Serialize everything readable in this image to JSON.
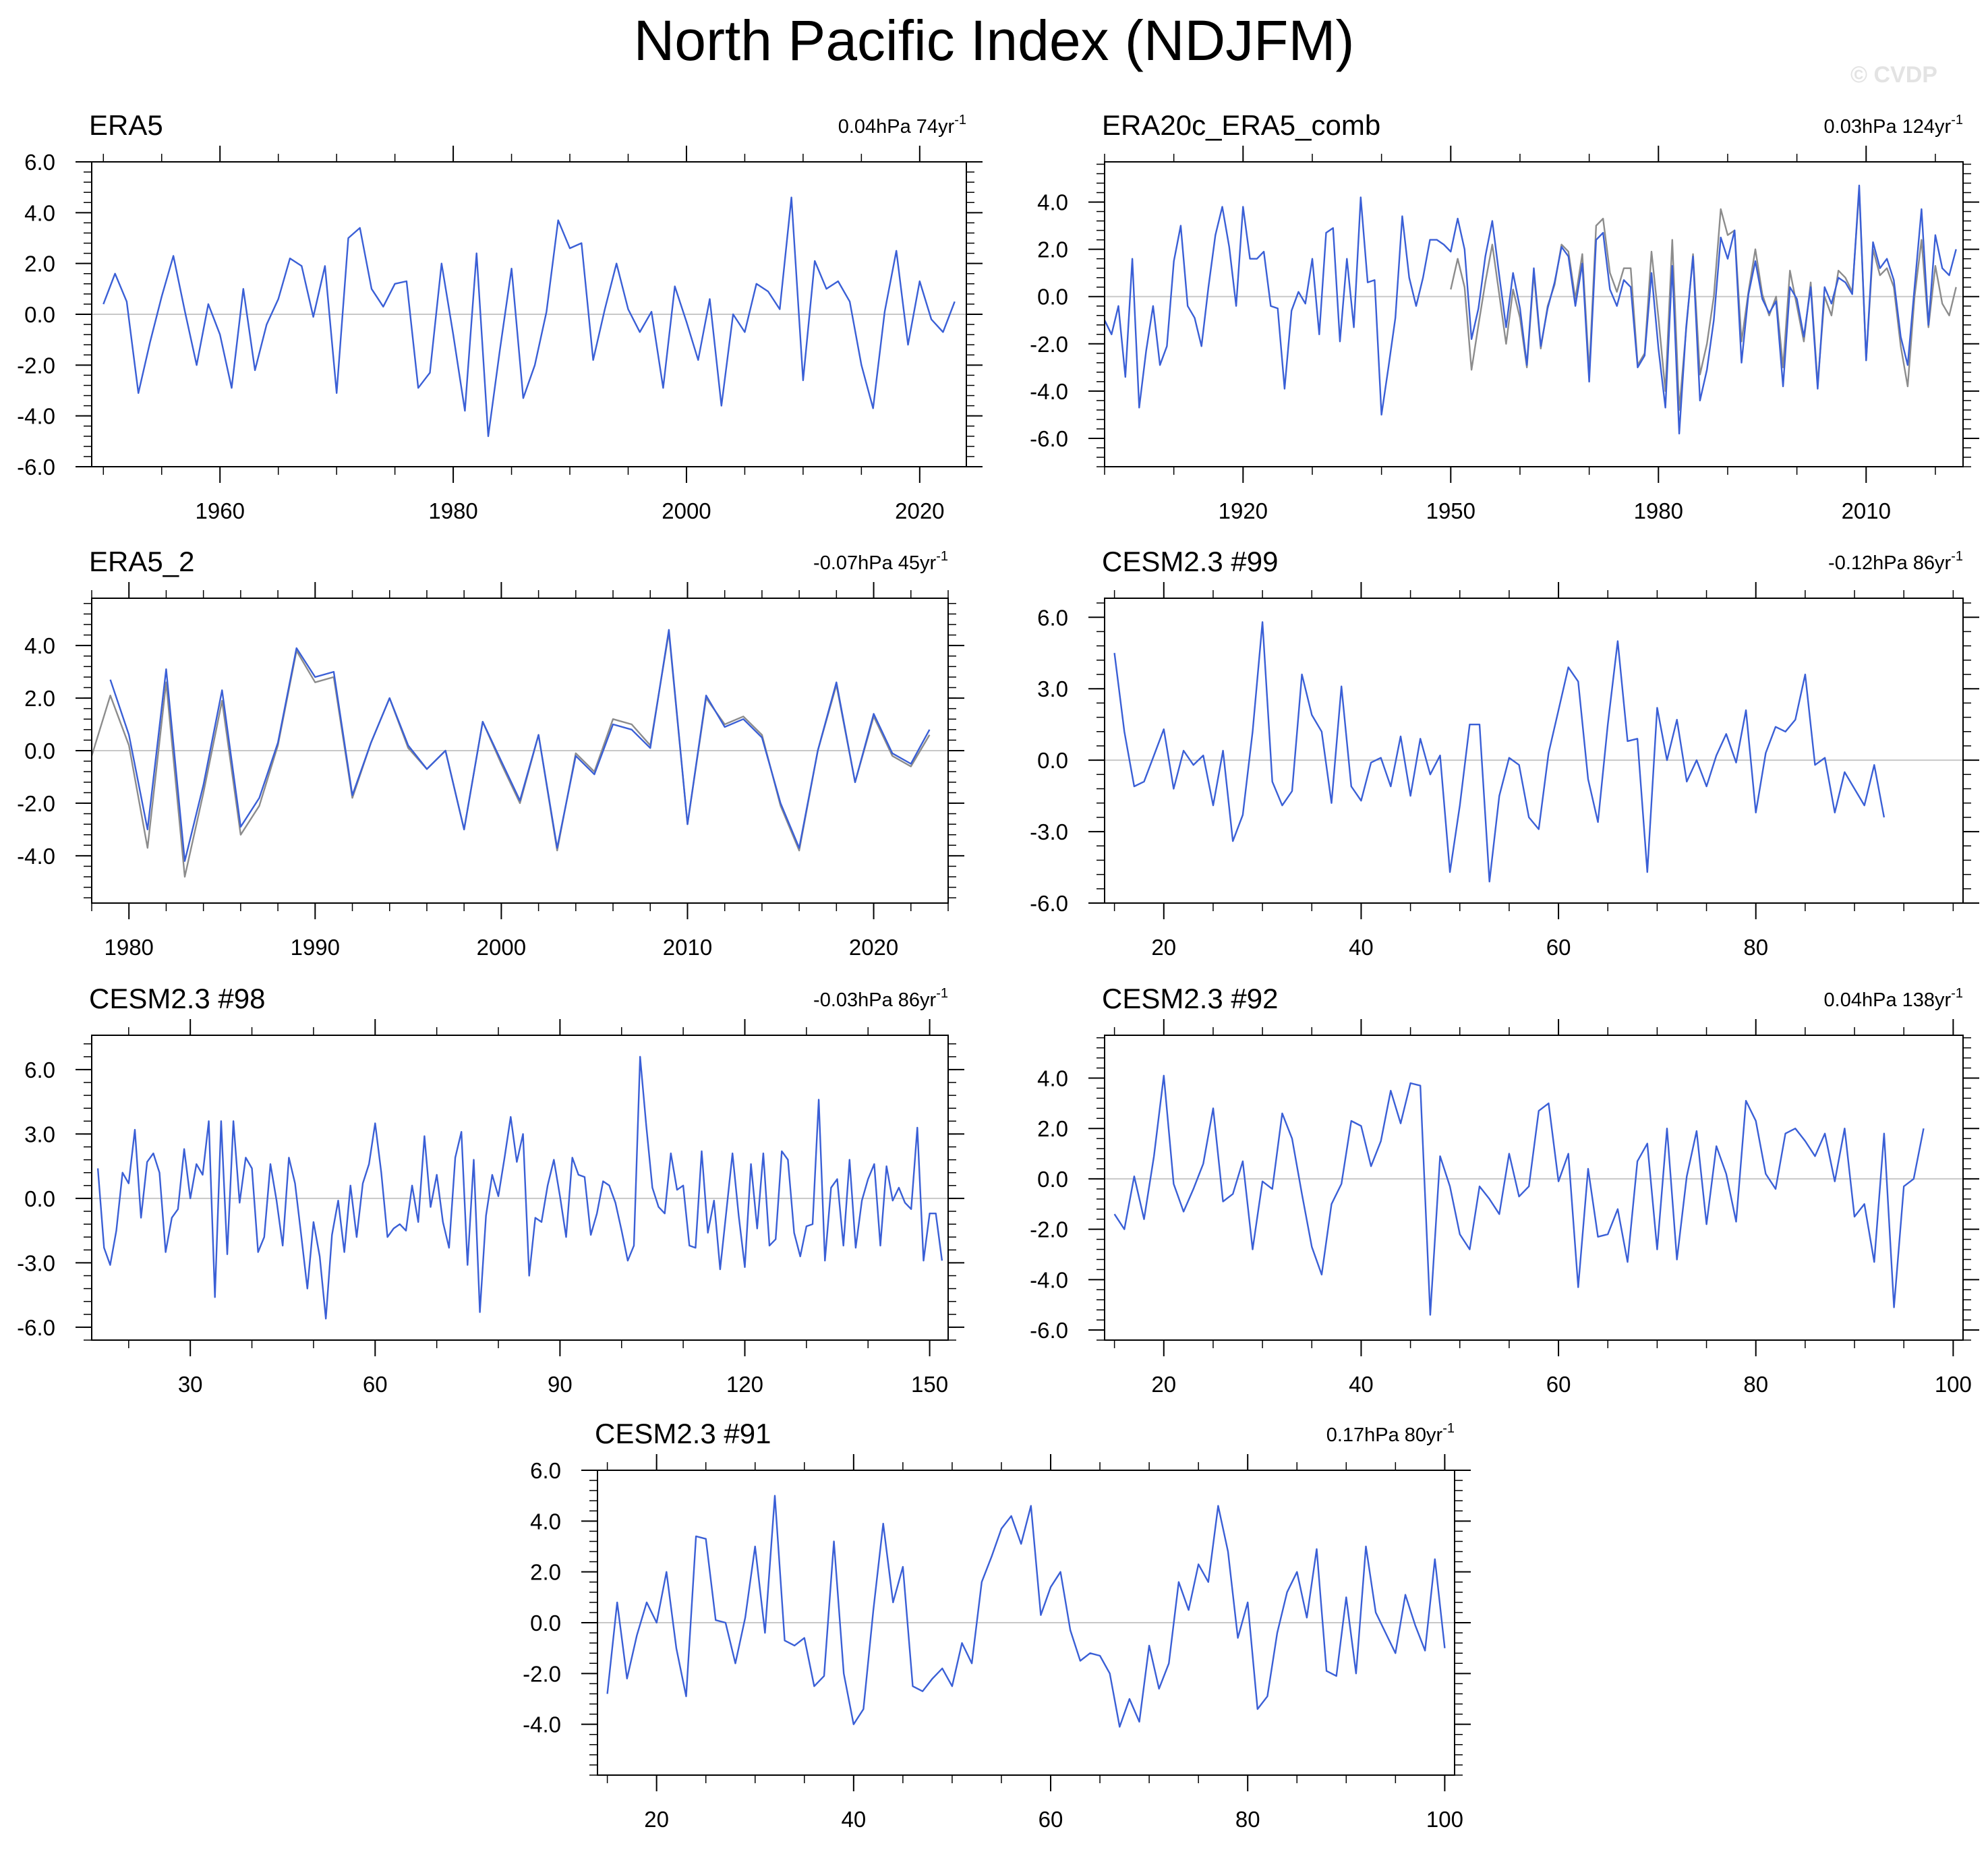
{
  "title": "North Pacific Index (NDJFM)",
  "watermark": "© CVDP",
  "colors": {
    "primary_series": "#3a5fd6",
    "overlay_series": "#8c8c8c",
    "zero_line": "#c8c8c8",
    "frame": "#000000"
  },
  "chart_data": [
    {
      "type": "line",
      "title": "ERA5",
      "trend_label": "0.04hPa 74yr",
      "trend_exponent": "-1",
      "xlim": [
        1949,
        2024
      ],
      "ylim": [
        -6,
        6
      ],
      "yticks": [
        -6,
        -4,
        -2,
        0,
        2,
        4,
        6
      ],
      "ytick_labels": [
        "-6.0",
        "-4.0",
        "-2.0",
        "0.0",
        "2.0",
        "4.0",
        "6.0"
      ],
      "xticks": [
        1960,
        1980,
        2000,
        2020
      ],
      "xtick_labels": [
        "1960",
        "1980",
        "2000",
        "2020"
      ],
      "series": [
        {
          "x_start": 1950,
          "values": [
            0.4,
            1.6,
            0.5,
            -3.1,
            -1.1,
            0.7,
            2.3,
            0.1,
            -2.0,
            0.4,
            -0.8,
            -2.9,
            1.0,
            -2.2,
            -0.4,
            0.6,
            2.2,
            1.9,
            -0.1,
            1.9,
            -3.1,
            3.0,
            3.4,
            1.0,
            0.3,
            1.2,
            1.3,
            -2.9,
            -2.3,
            2.0,
            -0.8,
            -3.8,
            2.4,
            -4.8,
            -1.4,
            1.8,
            -3.3,
            -2.0,
            0.1,
            3.7,
            2.6,
            2.8,
            -1.8,
            0.2,
            2.0,
            0.2,
            -0.7,
            0.1,
            -2.9,
            1.1,
            -0.3,
            -1.8,
            0.6,
            -3.6,
            0.0,
            -0.7,
            1.2,
            0.9,
            0.2,
            4.6,
            -2.6,
            2.1,
            1.0,
            1.3,
            0.5,
            -2.0,
            -3.7,
            0.1,
            2.5,
            -1.2,
            1.3,
            -0.2,
            -0.7,
            0.5
          ]
        }
      ]
    },
    {
      "type": "line",
      "title": "ERA20c_ERA5_comb",
      "trend_label": "0.03hPa 124yr",
      "trend_exponent": "-1",
      "xlim": [
        1900,
        2024
      ],
      "ylim": [
        -7.2,
        5.7
      ],
      "yticks": [
        -6,
        -4,
        -2,
        0,
        2,
        4
      ],
      "ytick_labels": [
        "-6.0",
        "-4.0",
        "-2.0",
        "0.0",
        "2.0",
        "4.0"
      ],
      "xticks": [
        1920,
        1950,
        1980,
        2010
      ],
      "xtick_labels": [
        "1920",
        "1950",
        "1980",
        "2010"
      ],
      "series": [
        {
          "x_start": 1900,
          "values": [
            -1.0,
            -1.6,
            -0.4,
            -3.4,
            1.6,
            -4.7,
            -2.3,
            -0.4,
            -2.9,
            -2.1,
            1.5,
            3.0,
            -0.4,
            -0.9,
            -2.1,
            0.4,
            2.6,
            3.8,
            2.1,
            -0.4,
            3.8,
            1.6,
            1.6,
            1.9,
            -0.4,
            -0.5,
            -3.9,
            -0.6,
            0.2,
            -0.3,
            1.6,
            -1.6,
            2.7,
            2.9,
            -1.9,
            1.6,
            -1.3,
            4.2,
            0.6,
            0.7,
            -5.0,
            -3.0,
            -0.9,
            3.4,
            0.8,
            -0.4,
            0.8,
            2.4,
            2.4,
            2.2,
            1.9,
            3.3,
            2.0,
            -1.8,
            -0.5,
            1.7,
            3.2,
            0.9,
            -1.3,
            1.0,
            -0.5,
            -2.9,
            1.2,
            -2.1,
            -0.5,
            0.6,
            2.1,
            1.7,
            -0.4,
            1.4,
            -3.6,
            2.4,
            2.7,
            0.3,
            -0.4,
            0.7,
            0.4,
            -3.0,
            -2.5,
            1.0,
            -2.2,
            -4.7,
            1.3,
            -5.8,
            -1.3,
            1.7,
            -4.4,
            -3.1,
            -1.0,
            2.5,
            1.6,
            2.8,
            -2.8,
            0.1,
            1.5,
            -0.1,
            -0.7,
            -0.2,
            -3.8,
            0.4,
            -0.1,
            -1.7,
            0.4,
            -3.9,
            0.4,
            -0.3,
            0.8,
            0.6,
            0.1,
            4.7,
            -2.7,
            2.3,
            1.2,
            1.6,
            0.7,
            -1.7,
            -2.9,
            0.4,
            3.7,
            -1.2,
            2.6,
            1.2,
            0.9,
            2.0
          ]
        },
        {
          "x_start": 1950,
          "values": [
            0.3,
            1.6,
            0.4,
            -3.1,
            -1.2,
            0.6,
            2.2,
            0.1,
            -2.0,
            0.3,
            -0.9,
            -3.0,
            1.0,
            -2.2,
            -0.4,
            0.5,
            2.2,
            1.9,
            -0.1,
            1.8,
            -3.2,
            3.0,
            3.3,
            1.0,
            0.2,
            1.2,
            1.2,
            -2.9,
            -2.4,
            1.9,
            -0.9,
            -4.0,
            2.4,
            -4.8,
            -1.4,
            1.8,
            -3.3,
            -2.0,
            0.0,
            3.7,
            2.6,
            2.8,
            -1.9,
            0.2,
            2.0,
            0.1,
            -0.8,
            0.0,
            -3.0,
            1.1,
            -0.4,
            -1.9,
            0.6,
            -3.7,
            0.0,
            -0.8,
            1.1,
            0.8,
            0.2,
            4.5,
            -2.7,
            2.0,
            0.9,
            1.2,
            0.4,
            -2.1,
            -3.8,
            0.0,
            2.4,
            -1.3,
            1.3,
            -0.3,
            -0.8,
            0.4
          ]
        }
      ]
    },
    {
      "type": "line",
      "title": "ERA5_2",
      "trend_label": "-0.07hPa 45yr",
      "trend_exponent": "-1",
      "xlim": [
        1978,
        2024
      ],
      "ylim": [
        -5.8,
        5.8
      ],
      "yticks": [
        -4,
        -2,
        0,
        2,
        4
      ],
      "ytick_labels": [
        "-4.0",
        "-2.0",
        "0.0",
        "2.0",
        "4.0"
      ],
      "xticks": [
        1980,
        1990,
        2000,
        2010,
        2020
      ],
      "xtick_labels": [
        "1980",
        "1990",
        "2000",
        "2010",
        "2020"
      ],
      "series": [
        {
          "x_start": 1979,
          "values": [
            2.7,
            0.6,
            -3.0,
            3.1,
            -4.2,
            -1.3,
            2.3,
            -2.9,
            -1.8,
            0.3,
            3.9,
            2.8,
            3.0,
            -1.7,
            0.3,
            2.0,
            0.2,
            -0.7,
            0.0,
            -3.0,
            1.1,
            -0.4,
            -1.9,
            0.6,
            -3.7,
            -0.2,
            -0.9,
            1.0,
            0.8,
            0.1,
            4.6,
            -2.8,
            2.1,
            0.9,
            1.2,
            0.5,
            -2.0,
            -3.7,
            0.0,
            2.6,
            -1.2,
            1.4,
            -0.1,
            -0.5,
            0.8
          ]
        },
        {
          "x_start": 1978,
          "values": [
            -0.2,
            2.1,
            0.2,
            -3.7,
            2.6,
            -4.8,
            -1.6,
            1.9,
            -3.2,
            -2.1,
            0.2,
            3.8,
            2.6,
            2.8,
            -1.8,
            0.3,
            2.0,
            0.1,
            -0.7,
            0.0,
            -3.0,
            1.1,
            -0.5,
            -2.0,
            0.6,
            -3.8,
            -0.1,
            -0.8,
            1.2,
            1.0,
            0.2,
            4.5,
            -2.8,
            2.0,
            1.0,
            1.3,
            0.6,
            -2.1,
            -3.8,
            0.0,
            2.5,
            -1.2,
            1.3,
            -0.2,
            -0.6,
            0.6
          ]
        }
      ]
    },
    {
      "type": "line",
      "title": "CESM2.3 #99",
      "trend_label": "-0.12hPa 86yr",
      "trend_exponent": "-1",
      "xlim": [
        14,
        101
      ],
      "ylim": [
        -6,
        6.8
      ],
      "yticks": [
        -6,
        -3,
        0,
        3,
        6
      ],
      "ytick_labels": [
        "-6.0",
        "-3.0",
        "0.0",
        "3.0",
        "6.0"
      ],
      "xticks": [
        20,
        40,
        60,
        80
      ],
      "xtick_labels": [
        "20",
        "40",
        "60",
        "80"
      ],
      "series": [
        {
          "x_start": 15,
          "values": [
            4.5,
            1.2,
            -1.1,
            -0.9,
            0.2,
            1.3,
            -1.2,
            0.4,
            -0.2,
            0.2,
            -1.9,
            0.4,
            -3.4,
            -2.3,
            1.2,
            5.8,
            -0.9,
            -1.9,
            -1.3,
            3.6,
            1.9,
            1.2,
            -1.8,
            3.1,
            -1.1,
            -1.7,
            -0.1,
            0.1,
            -1.1,
            1.0,
            -1.5,
            0.9,
            -0.6,
            0.2,
            -4.7,
            -1.9,
            1.5,
            1.5,
            -5.1,
            -1.5,
            0.1,
            -0.2,
            -2.4,
            -2.9,
            0.3,
            2.1,
            3.9,
            3.3,
            -0.8,
            -2.6,
            1.5,
            5.0,
            0.8,
            0.9,
            -4.7,
            2.2,
            0.0,
            1.7,
            -0.9,
            0.0,
            -1.1,
            0.2,
            1.1,
            -0.1,
            2.1,
            -2.2,
            0.3,
            1.4,
            1.2,
            1.7,
            3.6,
            -0.2,
            0.1,
            -2.2,
            -0.5,
            -1.2,
            -1.9,
            -0.2,
            -2.4
          ]
        }
      ]
    },
    {
      "type": "line",
      "title": "CESM2.3 #98",
      "trend_label": "-0.03hPa 86yr",
      "trend_exponent": "-1",
      "xlim": [
        14,
        153
      ],
      "ylim": [
        -6.6,
        7.6
      ],
      "yticks": [
        -6,
        -3,
        0,
        3,
        6
      ],
      "ytick_labels": [
        "-6.0",
        "-3.0",
        "0.0",
        "3.0",
        "6.0"
      ],
      "xticks": [
        30,
        60,
        90,
        120,
        150
      ],
      "xtick_labels": [
        "30",
        "60",
        "90",
        "120",
        "150"
      ],
      "series": [
        {
          "x_start": 15,
          "values": [
            1.4,
            -2.3,
            -3.1,
            -1.5,
            1.2,
            0.7,
            3.2,
            -0.9,
            1.7,
            2.1,
            1.2,
            -2.5,
            -0.9,
            -0.5,
            2.3,
            0.0,
            1.6,
            1.1,
            3.6,
            -4.6,
            3.6,
            -2.6,
            3.6,
            -0.2,
            1.9,
            1.4,
            -2.5,
            -1.8,
            1.6,
            -0.1,
            -2.2,
            1.9,
            0.7,
            -1.7,
            -4.2,
            -1.1,
            -2.7,
            -5.6,
            -1.7,
            -0.1,
            -2.5,
            0.6,
            -1.8,
            0.7,
            1.6,
            3.5,
            1.2,
            -1.8,
            -1.4,
            -1.2,
            -1.5,
            0.6,
            -1.1,
            2.9,
            -0.4,
            1.1,
            -1.1,
            -2.3,
            1.9,
            3.1,
            -3.1,
            1.8,
            -5.3,
            -0.8,
            1.1,
            0.1,
            1.9,
            3.8,
            1.7,
            3.0,
            -3.6,
            -0.9,
            -1.1,
            0.6,
            1.8,
            0.1,
            -1.8,
            1.9,
            1.1,
            1.0,
            -1.7,
            -0.7,
            0.8,
            0.6,
            -0.2,
            -1.5,
            -2.9,
            -2.2,
            6.6,
            3.4,
            0.5,
            -0.4,
            -0.7,
            2.1,
            0.4,
            0.6,
            -2.2,
            -2.3,
            2.2,
            -1.6,
            -0.1,
            -3.3,
            -0.6,
            2.1,
            -0.8,
            -3.2,
            1.6,
            -1.4,
            2.1,
            -2.2,
            -1.9,
            2.2,
            1.8,
            -1.6,
            -2.7,
            -1.3,
            -1.2,
            4.6,
            -2.9,
            0.5,
            0.9,
            -2.2,
            1.8,
            -2.3,
            -0.1,
            0.9,
            1.6,
            -2.2,
            1.5,
            -0.1,
            0.5,
            -0.2,
            -0.5,
            3.3,
            -2.9,
            -0.7,
            -0.7,
            -2.9
          ]
        }
      ]
    },
    {
      "type": "line",
      "title": "CESM2.3 #92",
      "trend_label": "0.04hPa 138yr",
      "trend_exponent": "-1",
      "xlim": [
        14,
        101
      ],
      "ylim": [
        -6.4,
        5.7
      ],
      "yticks": [
        -6,
        -4,
        -2,
        0,
        2,
        4
      ],
      "ytick_labels": [
        "-6.0",
        "-4.0",
        "-2.0",
        "0.0",
        "2.0",
        "4.0"
      ],
      "xticks": [
        20,
        40,
        60,
        80,
        100
      ],
      "xtick_labels": [
        "20",
        "40",
        "60",
        "80",
        "100"
      ],
      "series": [
        {
          "x_start": 15,
          "values": [
            -1.4,
            -2.0,
            0.1,
            -1.6,
            0.9,
            4.1,
            -0.2,
            -1.3,
            -0.4,
            0.6,
            2.8,
            -0.9,
            -0.6,
            0.7,
            -2.8,
            -0.1,
            -0.4,
            2.6,
            1.6,
            -0.6,
            -2.7,
            -3.8,
            -1.0,
            -0.2,
            2.3,
            2.1,
            0.5,
            1.5,
            3.5,
            2.2,
            3.8,
            3.7,
            -5.4,
            0.9,
            -0.3,
            -2.2,
            -2.8,
            -0.3,
            -0.8,
            -1.4,
            1.0,
            -0.7,
            -0.3,
            2.7,
            3.0,
            -0.1,
            1.0,
            -4.3,
            0.4,
            -2.3,
            -2.2,
            -1.2,
            -3.3,
            0.7,
            1.4,
            -2.8,
            2.0,
            -3.2,
            0.1,
            1.9,
            -1.8,
            1.3,
            0.2,
            -1.7,
            3.1,
            2.3,
            0.2,
            -0.4,
            1.8,
            2.0,
            1.5,
            0.9,
            1.8,
            -0.1,
            2.0,
            -1.5,
            -1.0,
            -3.3,
            1.8,
            -5.1,
            -0.3,
            0.0,
            2.0
          ]
        }
      ]
    },
    {
      "type": "line",
      "title": "CESM2.3 #91",
      "trend_label": "0.17hPa 80yr",
      "trend_exponent": "-1",
      "xlim": [
        14,
        101
      ],
      "ylim": [
        -6,
        6
      ],
      "yticks": [
        -4,
        -2,
        0,
        2,
        4,
        6
      ],
      "ytick_labels": [
        "-4.0",
        "-2.0",
        "0.0",
        "2.0",
        "4.0",
        "6.0"
      ],
      "xticks": [
        20,
        40,
        60,
        80,
        100
      ],
      "xtick_labels": [
        "20",
        "40",
        "60",
        "80",
        "100"
      ],
      "series": [
        {
          "x_start": 15,
          "values": [
            -2.8,
            0.8,
            -2.2,
            -0.5,
            0.8,
            0.0,
            2.0,
            -1.0,
            -2.9,
            3.4,
            3.3,
            0.1,
            0.0,
            -1.6,
            0.2,
            3.0,
            -0.4,
            5.0,
            -0.7,
            -0.9,
            -0.6,
            -2.5,
            -2.1,
            3.2,
            -2.0,
            -4.0,
            -3.4,
            0.5,
            3.9,
            0.8,
            2.2,
            -2.5,
            -2.7,
            -2.2,
            -1.8,
            -2.5,
            -0.8,
            -1.6,
            1.6,
            2.6,
            3.7,
            4.2,
            3.1,
            4.6,
            0.3,
            1.4,
            2.0,
            -0.3,
            -1.5,
            -1.2,
            -1.3,
            -2.0,
            -4.1,
            -3.0,
            -3.9,
            -0.9,
            -2.6,
            -1.6,
            1.6,
            0.5,
            2.3,
            1.6,
            4.6,
            2.8,
            -0.6,
            0.8,
            -3.4,
            -2.9,
            -0.4,
            1.2,
            2.0,
            0.2,
            2.9,
            -1.9,
            -2.1,
            1.0,
            -2.0,
            3.0,
            0.4,
            -0.4,
            -1.2,
            1.1,
            -0.1,
            -1.1,
            2.5,
            -1.0
          ]
        }
      ]
    }
  ]
}
